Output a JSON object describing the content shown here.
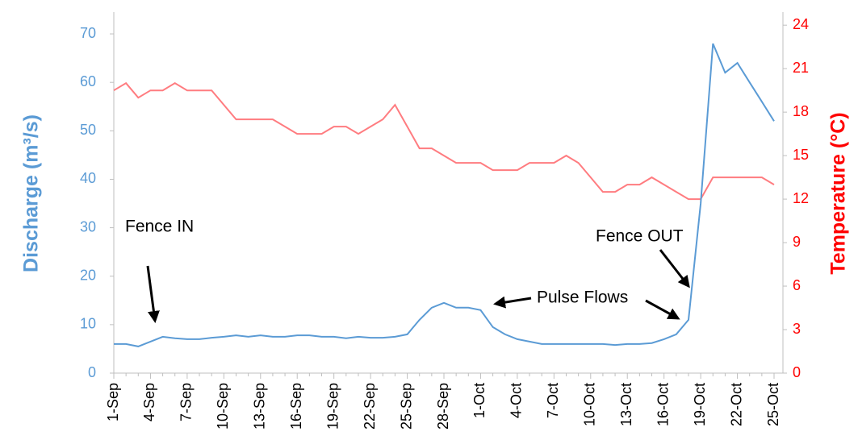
{
  "chart_data": {
    "type": "line",
    "y_label": "Discharge (m³/s)",
    "y2_label": "Temperature (°C)",
    "categories": [
      "1-Sep",
      null,
      null,
      "4-Sep",
      null,
      null,
      "7-Sep",
      null,
      null,
      "10-Sep",
      null,
      null,
      "13-Sep",
      null,
      null,
      "16-Sep",
      null,
      null,
      "19-Sep",
      null,
      null,
      "22-Sep",
      null,
      null,
      "25-Sep",
      null,
      null,
      "28-Sep",
      null,
      null,
      "1-Oct",
      null,
      null,
      "4-Oct",
      null,
      null,
      "7-Oct",
      null,
      null,
      "10-Oct",
      null,
      null,
      "13-Oct",
      null,
      null,
      "16-Oct",
      null,
      null,
      "19-Oct",
      null,
      null,
      "22-Oct",
      null,
      null,
      "25-Oct"
    ],
    "series": [
      {
        "color": "#5b9bd5",
        "axis": "y",
        "values": [
          6,
          6,
          5.5,
          6.5,
          7.5,
          7.2,
          7,
          7,
          7.3,
          7.5,
          7.8,
          7.5,
          7.8,
          7.5,
          7.5,
          7.8,
          7.8,
          7.5,
          7.5,
          7.2,
          7.5,
          7.3,
          7.3,
          7.5,
          8,
          11,
          13.5,
          14.5,
          13.5,
          13.5,
          13,
          9.5,
          8,
          7,
          6.5,
          6,
          6,
          6,
          6,
          6,
          6,
          5.8,
          6,
          6,
          6.2,
          7,
          8,
          11,
          35,
          68,
          62,
          64,
          60,
          56,
          52
        ]
      },
      {
        "color": "#ff7c80",
        "axis": "y2",
        "values": [
          19.5,
          20,
          19,
          19.5,
          19.5,
          20,
          19.5,
          19.5,
          19.5,
          18.5,
          17.5,
          17.5,
          17.5,
          17.5,
          17,
          16.5,
          16.5,
          16.5,
          17,
          17,
          16.5,
          17,
          17.5,
          18.5,
          17,
          15.5,
          15.5,
          15,
          14.5,
          14.5,
          14.5,
          14,
          14,
          14,
          14.5,
          14.5,
          14.5,
          15,
          14.5,
          13.5,
          12.5,
          12.5,
          13,
          13,
          13.5,
          13,
          12.5,
          12,
          12,
          13.5,
          13.5,
          13.5,
          13.5,
          13.5,
          13
        ]
      }
    ],
    "ylim": [
      0,
      74.5
    ],
    "yticks": [
      0,
      10,
      20,
      30,
      40,
      50,
      60,
      70
    ],
    "y_color": "#5b9bd5",
    "y2lim": [
      0,
      24.9
    ],
    "y2ticks": [
      0,
      3,
      6,
      9,
      12,
      15,
      18,
      21,
      24
    ],
    "y2_color": "#ff0000",
    "annotations": [
      "Fence IN",
      "Pulse Flows",
      "Fence OUT"
    ]
  }
}
